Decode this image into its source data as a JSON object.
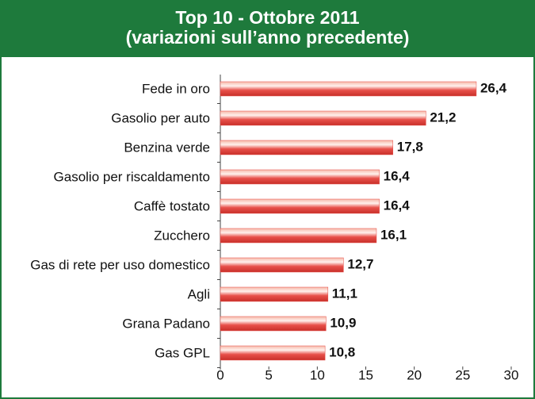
{
  "chart_data": {
    "type": "barh",
    "title": "Top 10 - Ottobre 2011",
    "subtitle": "(variazioni sull’anno precedente)",
    "categories": [
      "Fede in oro",
      "Gasolio per auto",
      "Benzina verde",
      "Gasolio per riscaldamento",
      "Caffè tostato",
      "Zucchero",
      "Gas di rete per uso domestico",
      "Agli",
      "Grana Padano",
      "Gas GPL"
    ],
    "values": [
      26.4,
      21.2,
      17.8,
      16.4,
      16.4,
      16.1,
      12.7,
      11.1,
      10.9,
      10.8
    ],
    "value_labels": [
      "26,4",
      "21,2",
      "17,8",
      "16,4",
      "16,4",
      "16,1",
      "12,7",
      "11,1",
      "10,9",
      "10,8"
    ],
    "color": "#e8504a",
    "xlim": [
      0,
      30
    ],
    "xticks": [
      0,
      5,
      10,
      15,
      20,
      25,
      30
    ]
  }
}
